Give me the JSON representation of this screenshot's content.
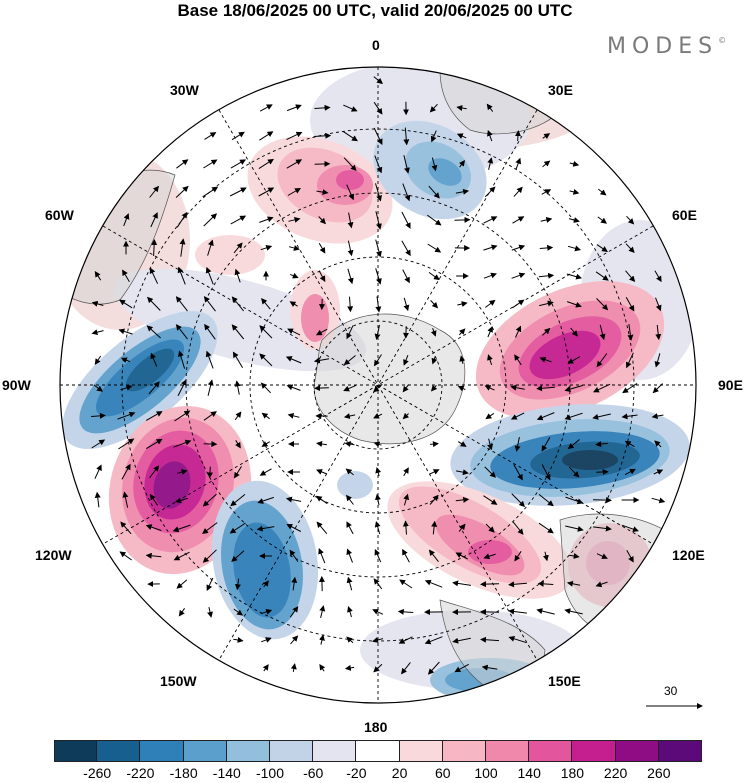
{
  "title": "Base 18/06/2025 00 UTC, valid 20/06/2025 00 UTC",
  "brand": "MODES",
  "brand_mark": "©",
  "lon_labels": {
    "l0": "0",
    "l30e": "30E",
    "l60e": "60E",
    "l90e": "90E",
    "l120e": "120E",
    "l150e": "150E",
    "l180": "180",
    "l150w": "150W",
    "l120w": "120W",
    "l90w": "90W",
    "l60w": "60W",
    "l30w": "30W"
  },
  "reference_vector": "30",
  "colorbar": {
    "colors": [
      "#0f3b5a",
      "#175f8f",
      "#2f7fb8",
      "#5b9fcc",
      "#93bedc",
      "#c2d3e8",
      "#e4e4f0",
      "#ffffff",
      "#f9d9db",
      "#f6b6c3",
      "#ef88aa",
      "#e3559c",
      "#c41e8f",
      "#8f0d84",
      "#5c0a7a"
    ],
    "ticks": [
      "-260",
      "-220",
      "-180",
      "-140",
      "-100",
      "-60",
      "-20",
      "20",
      "60",
      "100",
      "140",
      "180",
      "220",
      "260"
    ]
  }
}
